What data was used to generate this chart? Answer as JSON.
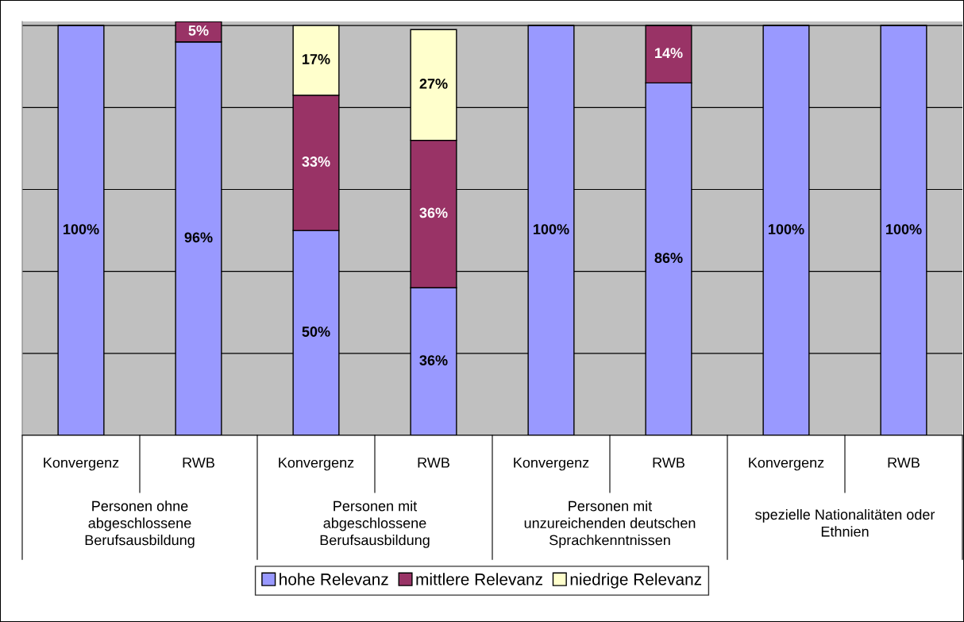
{
  "chart_data": {
    "type": "bar",
    "stacked": true,
    "categories": [
      "Konvergenz",
      "RWB",
      "Konvergenz",
      "RWB",
      "Konvergenz",
      "RWB",
      "Konvergenz",
      "RWB"
    ],
    "annotations": [
      "Personen ohne\nabgeschlossene\nBerufsausbildung",
      "Personen mit\nabgeschlossene\nBerufsausbildung",
      "Personen mit\nunzureichenden deutschen\nSprachkenntnissen",
      "spezielle Nationalitäten oder\nEthnien"
    ],
    "series": [
      {
        "name": "hohe Relevanz",
        "color": "#9999ff",
        "values": [
          100,
          96,
          50,
          36,
          100,
          86,
          100,
          100
        ],
        "value_labels": [
          "100%",
          "96%",
          "50%",
          "36%",
          "100%",
          "86%",
          "100%",
          "100%"
        ]
      },
      {
        "name": "mittlere Relevanz",
        "color": "#993366",
        "values": [
          null,
          5,
          33,
          36,
          null,
          14,
          null,
          null
        ],
        "value_labels": [
          null,
          "5%",
          "33%",
          "36%",
          null,
          "14%",
          null,
          null
        ]
      },
      {
        "name": "niedrige Relevanz",
        "color": "#ffffcc",
        "values": [
          null,
          null,
          17,
          27,
          null,
          null,
          null,
          null
        ],
        "value_labels": [
          null,
          null,
          "17%",
          "27%",
          null,
          null,
          null,
          null
        ]
      }
    ],
    "ylim": [
      0,
      101
    ],
    "yticks": [
      {
        "value": 0,
        "label": null
      },
      {
        "value": 20,
        "label": null
      },
      {
        "value": 40,
        "label": null
      },
      {
        "value": 60,
        "label": null
      },
      {
        "value": 80,
        "label": null
      },
      {
        "value": 100,
        "label": null
      }
    ],
    "grid": "y",
    "tick_labels": "x",
    "legend": "bottom"
  }
}
